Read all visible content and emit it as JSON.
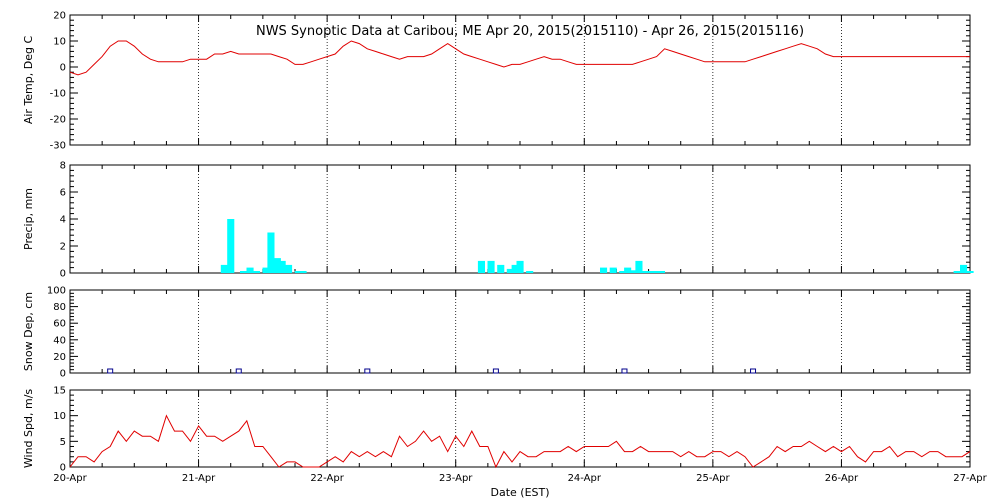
{
  "chart_data": [
    {
      "type": "line",
      "title": "NWS Synoptic Data at Caribou, ME    Apr 20, 2015(2015110) - Apr 26, 2015(2015116)",
      "ylabel": "Air Temp, Deg C",
      "ylim": [
        -30,
        20
      ],
      "yticks": [
        "20",
        "10",
        "0",
        "-10",
        "-20",
        "-30"
      ],
      "color": "#e00000",
      "x": [
        0,
        0.25,
        0.5,
        0.75,
        1,
        1.25,
        1.5,
        1.75,
        2,
        2.25,
        2.5,
        2.75,
        3,
        3.25,
        3.5,
        3.75,
        4,
        4.25,
        4.5,
        4.75,
        5,
        5.25,
        5.5,
        5.75,
        6,
        6.25,
        6.5,
        6.75,
        7,
        7.25,
        7.5,
        7.75,
        8,
        8.25,
        8.5,
        8.75,
        9,
        9.25,
        9.5,
        9.75,
        10,
        10.25,
        10.5,
        10.75,
        11,
        11.25,
        11.5,
        11.75,
        12,
        12.25,
        12.5,
        12.75,
        13,
        13.25,
        13.5,
        13.75,
        14,
        14.25,
        14.5,
        14.75,
        15,
        15.25,
        15.5,
        15.75,
        16,
        16.25,
        16.5,
        16.75,
        17,
        17.25,
        17.5,
        17.75,
        18,
        18.25,
        18.5,
        18.75,
        19,
        19.25,
        19.5,
        19.75,
        20,
        20.25,
        20.5,
        20.75,
        21,
        21.25,
        21.5,
        21.75,
        22,
        22.25,
        22.5,
        22.75,
        23,
        23.25,
        23.5,
        23.75,
        24,
        24.25,
        24.5,
        24.75,
        25,
        25.25,
        25.5,
        25.75,
        26,
        26.25,
        26.5,
        26.75,
        27,
        27.25,
        27.5,
        27.75,
        28
      ],
      "values": [
        -2,
        -3,
        -2,
        1,
        4,
        8,
        10,
        10,
        8,
        5,
        3,
        2,
        2,
        2,
        2,
        3,
        3,
        3,
        5,
        5,
        6,
        5,
        5,
        5,
        5,
        5,
        4,
        3,
        1,
        1,
        2,
        3,
        4,
        5,
        8,
        10,
        9,
        7,
        6,
        5,
        4,
        3,
        4,
        4,
        4,
        5,
        7,
        9,
        7,
        5,
        4,
        3,
        2,
        1,
        0,
        1,
        1,
        2,
        3,
        4,
        3,
        3,
        2,
        1,
        1,
        1,
        1,
        1,
        1,
        1,
        1,
        2,
        3,
        4,
        7,
        6,
        5,
        4,
        3,
        2,
        2,
        2,
        2,
        2,
        2,
        3,
        4,
        5,
        6,
        7,
        8,
        9,
        8,
        7,
        5,
        4,
        4,
        4,
        4,
        4,
        4,
        4,
        4,
        4,
        4,
        4,
        4,
        4,
        4,
        4,
        4,
        4,
        4
      ]
    },
    {
      "type": "bar",
      "ylabel": "Precip, mm",
      "ylim": [
        0,
        8
      ],
      "yticks": [
        "8",
        "6",
        "4",
        "2",
        "0"
      ],
      "color": "#00ffff",
      "points": [
        [
          4.8,
          0.6
        ],
        [
          5.0,
          4.0
        ],
        [
          5.4,
          0.15
        ],
        [
          5.6,
          0.4
        ],
        [
          5.8,
          0.15
        ],
        [
          6.1,
          0.4
        ],
        [
          6.25,
          3.0
        ],
        [
          6.45,
          1.1
        ],
        [
          6.6,
          0.9
        ],
        [
          6.8,
          0.6
        ],
        [
          7.1,
          0.15
        ],
        [
          7.25,
          0.15
        ],
        [
          12.8,
          0.9
        ],
        [
          13.1,
          0.9
        ],
        [
          13.4,
          0.6
        ],
        [
          13.7,
          0.3
        ],
        [
          13.85,
          0.6
        ],
        [
          14.0,
          0.9
        ],
        [
          14.3,
          0.15
        ],
        [
          16.6,
          0.4
        ],
        [
          16.9,
          0.4
        ],
        [
          17.2,
          0.15
        ],
        [
          17.35,
          0.4
        ],
        [
          17.5,
          0.2
        ],
        [
          17.7,
          0.9
        ],
        [
          17.85,
          0.15
        ],
        [
          18.0,
          0.15
        ],
        [
          18.2,
          0.15
        ],
        [
          18.4,
          0.15
        ],
        [
          27.6,
          0.15
        ],
        [
          27.8,
          0.6
        ],
        [
          28.0,
          0.15
        ]
      ]
    },
    {
      "type": "scatter",
      "ylabel": "Snow Dep, cm",
      "ylim": [
        0,
        100
      ],
      "yticks": [
        "100",
        "80",
        "60",
        "40",
        "20",
        "0"
      ],
      "color": "#00008b",
      "x": [
        1.25,
        5.25,
        9.25,
        13.25,
        17.25,
        21.25
      ],
      "values": [
        0,
        0,
        0,
        0,
        0,
        0
      ]
    },
    {
      "type": "line",
      "ylabel": "Wind Spd, m/s",
      "ylim": [
        0,
        15
      ],
      "yticks": [
        "15",
        "10",
        "5",
        "0"
      ],
      "xlabel": "Date (EST)",
      "xtick_labels": [
        "20-Apr",
        "21-Apr",
        "22-Apr",
        "23-Apr",
        "24-Apr",
        "25-Apr",
        "26-Apr",
        "27-Apr"
      ],
      "color": "#e00000",
      "x": [
        0,
        0.25,
        0.5,
        0.75,
        1,
        1.25,
        1.5,
        1.75,
        2,
        2.25,
        2.5,
        2.75,
        3,
        3.25,
        3.5,
        3.75,
        4,
        4.25,
        4.5,
        4.75,
        5,
        5.25,
        5.5,
        5.75,
        6,
        6.25,
        6.5,
        6.75,
        7,
        7.25,
        7.5,
        7.75,
        8,
        8.25,
        8.5,
        8.75,
        9,
        9.25,
        9.5,
        9.75,
        10,
        10.25,
        10.5,
        10.75,
        11,
        11.25,
        11.5,
        11.75,
        12,
        12.25,
        12.5,
        12.75,
        13,
        13.25,
        13.5,
        13.75,
        14,
        14.25,
        14.5,
        14.75,
        15,
        15.25,
        15.5,
        15.75,
        16,
        16.25,
        16.5,
        16.75,
        17,
        17.25,
        17.5,
        17.75,
        18,
        18.25,
        18.5,
        18.75,
        19,
        19.25,
        19.5,
        19.75,
        20,
        20.25,
        20.5,
        20.75,
        21,
        21.25,
        21.5,
        21.75,
        22,
        22.25,
        22.5,
        22.75,
        23,
        23.25,
        23.5,
        23.75,
        24,
        24.25,
        24.5,
        24.75,
        25,
        25.25,
        25.5,
        25.75,
        26,
        26.25,
        26.5,
        26.75,
        27,
        27.25,
        27.5,
        27.75,
        28
      ],
      "values": [
        0,
        2,
        2,
        1,
        3,
        4,
        7,
        5,
        7,
        6,
        6,
        5,
        10,
        7,
        7,
        5,
        8,
        6,
        6,
        5,
        6,
        7,
        9,
        4,
        4,
        2,
        0,
        1,
        1,
        0,
        0,
        0,
        1,
        2,
        1,
        3,
        2,
        3,
        2,
        3,
        2,
        6,
        4,
        5,
        7,
        5,
        6,
        3,
        6,
        4,
        7,
        4,
        4,
        0,
        3,
        1,
        3,
        2,
        2,
        3,
        3,
        3,
        4,
        3,
        4,
        4,
        4,
        4,
        5,
        3,
        3,
        4,
        3,
        3,
        3,
        3,
        2,
        3,
        2,
        2,
        3,
        3,
        2,
        3,
        2,
        0,
        1,
        2,
        4,
        3,
        4,
        4,
        5,
        4,
        3,
        4,
        3,
        4,
        2,
        1,
        3,
        3,
        4,
        2,
        3,
        3,
        2,
        3,
        3,
        2,
        2,
        2,
        3
      ]
    }
  ]
}
